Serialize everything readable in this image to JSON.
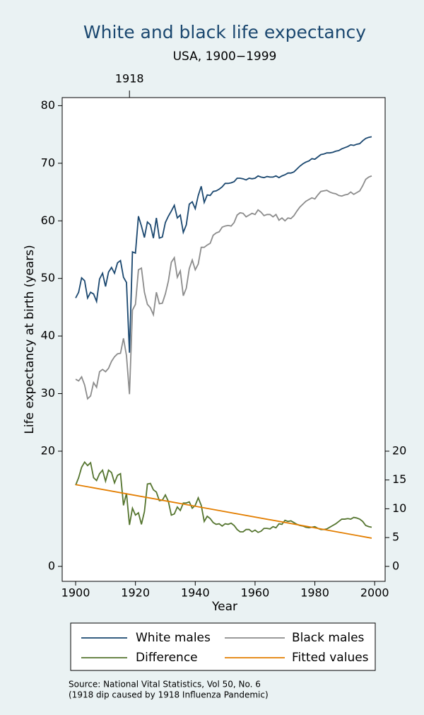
{
  "chart_data": {
    "type": "line",
    "title": "White and black life expectancy",
    "subtitle": "USA, 1900−1999",
    "x_label": "Year",
    "y_label": "Life expectancy at birth (years)",
    "notes": [
      "Source: National Vital Statistics, Vol 50, No. 6",
      "(1918 dip caused by 1918 Influenza Pandemic)"
    ],
    "x": [
      1900,
      1901,
      1902,
      1903,
      1904,
      1905,
      1906,
      1907,
      1908,
      1909,
      1910,
      1911,
      1912,
      1913,
      1914,
      1915,
      1916,
      1917,
      1918,
      1919,
      1920,
      1921,
      1922,
      1923,
      1924,
      1925,
      1926,
      1927,
      1928,
      1929,
      1930,
      1931,
      1932,
      1933,
      1934,
      1935,
      1936,
      1937,
      1938,
      1939,
      1940,
      1941,
      1942,
      1943,
      1944,
      1945,
      1946,
      1947,
      1948,
      1949,
      1950,
      1951,
      1952,
      1953,
      1954,
      1955,
      1956,
      1957,
      1958,
      1959,
      1960,
      1961,
      1962,
      1963,
      1964,
      1965,
      1966,
      1967,
      1968,
      1969,
      1970,
      1971,
      1972,
      1973,
      1974,
      1975,
      1976,
      1977,
      1978,
      1979,
      1980,
      1981,
      1982,
      1983,
      1984,
      1985,
      1986,
      1987,
      1988,
      1989,
      1990,
      1991,
      1992,
      1993,
      1994,
      1995,
      1996,
      1997,
      1998,
      1999
    ],
    "series": [
      {
        "name": "White males",
        "color": "#1a476f",
        "axis": "y",
        "values": [
          46.6,
          47.6,
          50.1,
          49.6,
          46.6,
          47.6,
          47.3,
          46.0,
          49.9,
          50.9,
          48.6,
          51.1,
          51.9,
          50.9,
          52.7,
          53.1,
          50.2,
          49.3,
          37.1,
          54.6,
          54.4,
          60.8,
          59.1,
          57.1,
          59.8,
          59.3,
          57.0,
          60.5,
          57.0,
          57.2,
          59.7,
          60.8,
          61.7,
          62.7,
          60.5,
          61.0,
          58.0,
          59.3,
          62.9,
          63.3,
          62.1,
          64.4,
          66.0,
          63.2,
          64.5,
          64.4,
          65.1,
          65.2,
          65.5,
          65.9,
          66.5,
          66.5,
          66.6,
          66.8,
          67.4,
          67.4,
          67.3,
          67.1,
          67.4,
          67.3,
          67.4,
          67.8,
          67.6,
          67.5,
          67.7,
          67.6,
          67.6,
          67.8,
          67.5,
          67.8,
          68.0,
          68.3,
          68.3,
          68.5,
          69.0,
          69.5,
          69.9,
          70.2,
          70.4,
          70.8,
          70.7,
          71.1,
          71.5,
          71.6,
          71.8,
          71.8,
          71.9,
          72.1,
          72.2,
          72.5,
          72.7,
          72.9,
          73.2,
          73.1,
          73.3,
          73.4,
          73.9,
          74.3,
          74.5,
          74.6
        ]
      },
      {
        "name": "Black males",
        "color": "#8c8c8c",
        "axis": "y",
        "values": [
          32.5,
          32.2,
          32.9,
          31.5,
          29.1,
          29.6,
          31.9,
          31.1,
          33.8,
          34.2,
          33.8,
          34.4,
          35.6,
          36.4,
          36.9,
          37.0,
          39.6,
          36.6,
          29.9,
          44.5,
          45.5,
          51.5,
          51.8,
          47.6,
          45.5,
          44.9,
          43.7,
          47.6,
          45.6,
          45.7,
          47.3,
          49.5,
          52.8,
          53.6,
          50.2,
          51.3,
          47.0,
          48.3,
          51.7,
          53.2,
          51.5,
          52.5,
          55.4,
          55.4,
          55.8,
          56.1,
          57.5,
          57.9,
          58.1,
          58.9,
          59.1,
          59.2,
          59.1,
          59.7,
          61.0,
          61.4,
          61.3,
          60.7,
          61.0,
          61.3,
          61.1,
          61.9,
          61.5,
          60.9,
          61.1,
          61.1,
          60.7,
          61.1,
          60.1,
          60.5,
          60.0,
          60.5,
          60.4,
          60.9,
          61.7,
          62.4,
          62.9,
          63.4,
          63.7,
          64.0,
          63.8,
          64.5,
          65.1,
          65.2,
          65.3,
          65.0,
          64.8,
          64.7,
          64.4,
          64.3,
          64.5,
          64.6,
          65.0,
          64.6,
          64.9,
          65.2,
          66.1,
          67.2,
          67.6,
          67.8
        ]
      },
      {
        "name": "Difference",
        "color": "#55752f",
        "axis": "y2",
        "values": [
          14.1,
          15.4,
          17.2,
          18.1,
          17.5,
          18.0,
          15.4,
          14.9,
          16.1,
          16.7,
          14.8,
          16.7,
          16.3,
          14.5,
          15.8,
          16.1,
          10.6,
          12.7,
          7.2,
          10.1,
          8.9,
          9.3,
          7.3,
          9.5,
          14.3,
          14.4,
          13.3,
          12.9,
          11.4,
          11.5,
          12.4,
          11.3,
          8.9,
          9.1,
          10.3,
          9.7,
          11.0,
          11.0,
          11.2,
          10.1,
          10.6,
          11.9,
          10.6,
          7.8,
          8.7,
          8.3,
          7.6,
          7.3,
          7.4,
          7.0,
          7.4,
          7.3,
          7.5,
          7.1,
          6.4,
          6.0,
          6.0,
          6.4,
          6.4,
          6.0,
          6.3,
          5.9,
          6.1,
          6.6,
          6.6,
          6.5,
          6.9,
          6.7,
          7.4,
          7.3,
          8.0,
          7.8,
          7.9,
          7.6,
          7.3,
          7.1,
          7.0,
          6.8,
          6.7,
          6.8,
          6.9,
          6.6,
          6.4,
          6.4,
          6.5,
          6.8,
          7.1,
          7.4,
          7.8,
          8.2,
          8.2,
          8.3,
          8.2,
          8.5,
          8.4,
          8.2,
          7.8,
          7.1,
          6.9,
          6.8
        ]
      },
      {
        "name": "Fitted values",
        "color": "#e37e00",
        "axis": "y2",
        "x": [
          1900,
          1999
        ],
        "values": [
          14.2,
          4.9
        ]
      }
    ],
    "xlim": [
      1895.5,
      2003.5
    ],
    "xticks": [
      1900,
      1920,
      1940,
      1960,
      1980,
      2000
    ],
    "x2ticks": [
      1918
    ],
    "ylim": [
      -2.6,
      81.4
    ],
    "yticks": [
      0,
      20,
      30,
      40,
      50,
      60,
      70,
      80
    ],
    "y2lim": [
      -2.6,
      81.4
    ],
    "y2ticks": [
      0,
      5,
      10,
      15,
      20
    ],
    "grid": false
  }
}
